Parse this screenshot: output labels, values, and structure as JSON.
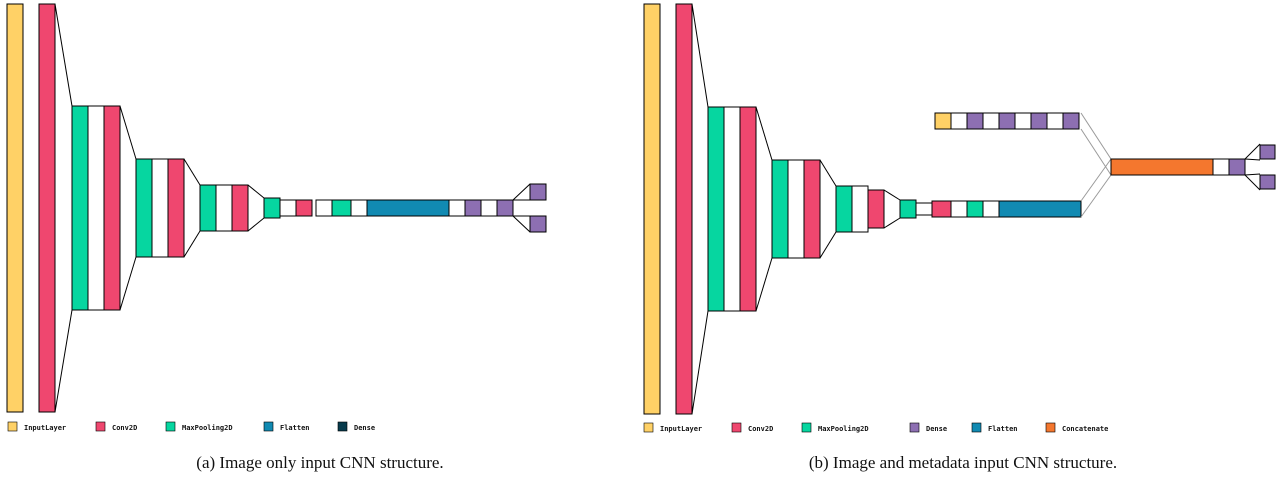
{
  "colors": {
    "InputLayer": "#ffd166",
    "Conv2D": "#ef476f",
    "MaxPooling2D": "#06d6a0",
    "Flatten": "#118ab2",
    "Dense": "#8d6fb2",
    "DenseLegend": "#073b4c",
    "Concatenate": "#f4772e",
    "Blank": "#ffffff"
  },
  "panel_a": {
    "caption": "(a) Image only input CNN structure.",
    "legend": [
      {
        "label": "InputLayer",
        "color": "#ffd166"
      },
      {
        "label": "Conv2D",
        "color": "#ef476f"
      },
      {
        "label": "MaxPooling2D",
        "color": "#06d6a0"
      },
      {
        "label": "Flatten",
        "color": "#118ab2"
      },
      {
        "label": "Dense",
        "color": "#073b4c"
      }
    ]
  },
  "panel_b": {
    "caption": "(b) Image and metadata input CNN structure.",
    "legend": [
      {
        "label": "InputLayer",
        "color": "#ffd166"
      },
      {
        "label": "Conv2D",
        "color": "#ef476f"
      },
      {
        "label": "MaxPooling2D",
        "color": "#06d6a0"
      },
      {
        "label": "Dense",
        "color": "#8d6fb2"
      },
      {
        "label": "Flatten",
        "color": "#118ab2"
      },
      {
        "label": "Concatenate",
        "color": "#f4772e"
      }
    ]
  }
}
